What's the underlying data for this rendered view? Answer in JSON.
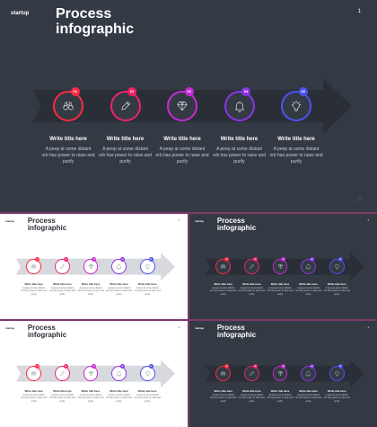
{
  "slide": {
    "brand": "startup",
    "title_line1": "Process",
    "title_line2": "infographic",
    "page_number": "1"
  },
  "steps": [
    {
      "number": "01",
      "icon": "binoculars-icon",
      "color": "#ff2a43",
      "title": "Write title here",
      "desc_line1": "A peep at some distant",
      "desc_line2": "orb has power to raise and",
      "desc_line3": "purify"
    },
    {
      "number": "02",
      "icon": "pencil-icon",
      "color": "#f0226a",
      "title": "Write title here",
      "desc_line1": "A peep at some distant",
      "desc_line2": "orb has power to raise and",
      "desc_line3": "purify"
    },
    {
      "number": "03",
      "icon": "diamond-icon",
      "color": "#c72ad4",
      "title": "Write title here",
      "desc_line1": "A peep at some distant",
      "desc_line2": "orb has power to raise and",
      "desc_line3": "purify"
    },
    {
      "number": "04",
      "icon": "bell-icon",
      "color": "#8c35e8",
      "title": "Write title here",
      "desc_line1": "A peep at some distant",
      "desc_line2": "orb has power to raise and",
      "desc_line3": "purify"
    },
    {
      "number": "05",
      "icon": "lightbulb-icon",
      "color": "#4d52f2",
      "title": "Write title here",
      "desc_line1": "A peep at some distant",
      "desc_line2": "orb has power to raise and",
      "desc_line3": "purify"
    }
  ],
  "thumbnails": [
    {
      "theme": "light"
    },
    {
      "theme": "dark"
    },
    {
      "theme": "light"
    },
    {
      "theme": "dark"
    }
  ],
  "colors": {
    "dark_bg": "#343a44",
    "light_bg": "#ffffff",
    "separator": "#7e3a6c",
    "arrow_dark": "#2a2f37",
    "arrow_light": "#d7d9de"
  }
}
